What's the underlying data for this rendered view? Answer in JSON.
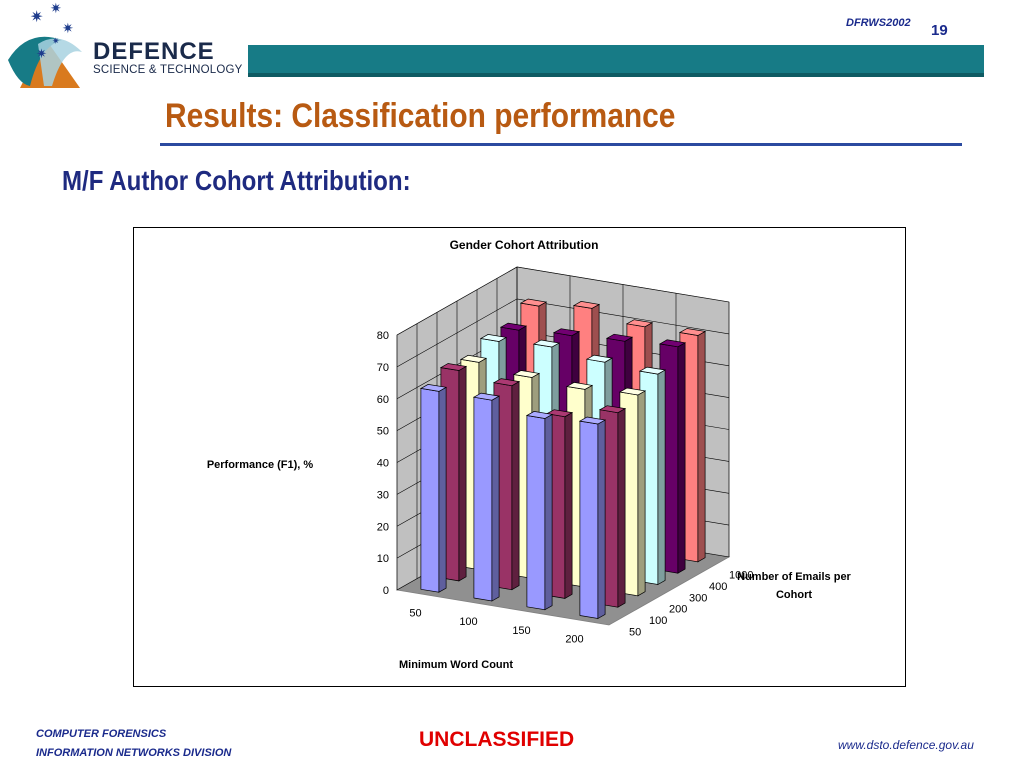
{
  "header": {
    "logo_line1": "DEFENCE",
    "logo_line2": "SCIENCE & TECHNOLOGY",
    "conference": "DFRWS2002",
    "slide_number": "19",
    "brand_color": "#177b86"
  },
  "slide": {
    "title": "Results: Classification performance",
    "subtitle": "M/F Author Cohort Attribution:"
  },
  "footer": {
    "division_line1": "COMPUTER FORENSICS",
    "division_line2": "INFORMATION NETWORKS DIVISION",
    "classification": "UNCLASSIFIED",
    "website": "www.dsto.defence.gov.au"
  },
  "chart_data": {
    "type": "bar",
    "subtype": "3d-column",
    "title": "Gender Cohort Attribution",
    "xlabel": "Minimum Word Count",
    "ylabel": "Performance (F1), %",
    "zlabel": "Number of Emails per Cohort",
    "categories": [
      "50",
      "100",
      "150",
      "200"
    ],
    "yticks": [
      0,
      10,
      20,
      30,
      40,
      50,
      60,
      70,
      80
    ],
    "ylim": [
      0,
      80
    ],
    "grid": true,
    "series": [
      {
        "name": "50",
        "color": "#9999ff",
        "values": [
          63,
          63,
          60,
          61
        ]
      },
      {
        "name": "100",
        "color": "#993366",
        "values": [
          66,
          64,
          57,
          61
        ]
      },
      {
        "name": "200",
        "color": "#ffffcc",
        "values": [
          65,
          63,
          62,
          63
        ]
      },
      {
        "name": "300",
        "color": "#ccffff",
        "values": [
          68,
          69,
          67,
          66
        ]
      },
      {
        "name": "400",
        "color": "#660066",
        "values": [
          68,
          69,
          70,
          71
        ]
      },
      {
        "name": "1000",
        "color": "#ff8080",
        "values": [
          72,
          74,
          71,
          71
        ]
      }
    ]
  }
}
